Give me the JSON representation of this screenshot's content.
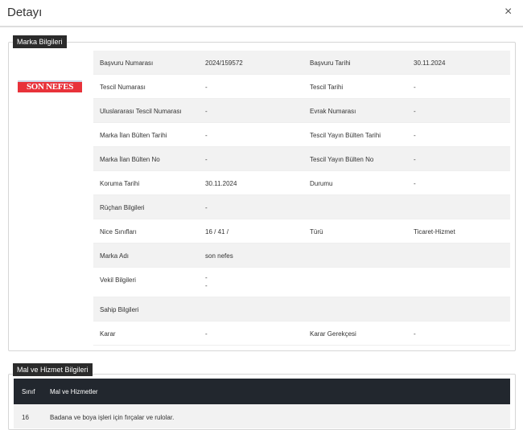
{
  "header": {
    "title": "Detayı",
    "close": "×"
  },
  "marka": {
    "legend": "Marka Bilgileri",
    "logo_text": "SON NEFES",
    "rows": [
      {
        "l1": "Başvuru Numarası",
        "v1": "2024/159572",
        "l2": "Başvuru Tarihi",
        "v2": "30.11.2024"
      },
      {
        "l1": "Tescil Numarası",
        "v1": "-",
        "l2": "Tescil Tarihi",
        "v2": "-"
      },
      {
        "l1": "Uluslararası Tescil Numarası",
        "v1": "-",
        "l2": "Evrak Numarası",
        "v2": "-"
      },
      {
        "l1": "Marka İlan Bülten Tarihi",
        "v1": "-",
        "l2": "Tescil Yayın Bülten Tarihi",
        "v2": "-"
      },
      {
        "l1": "Marka İlan Bülten No",
        "v1": "-",
        "l2": "Tescil Yayın Bülten No",
        "v2": "-"
      },
      {
        "l1": "Koruma Tarihi",
        "v1": "30.11.2024",
        "l2": "Durumu",
        "v2": "-"
      },
      {
        "l1": "Rüçhan Bilgileri",
        "v1": "-",
        "l2": "",
        "v2": ""
      },
      {
        "l1": "Nice Sınıfları",
        "v1": "16 / 41 /",
        "l2": "Türü",
        "v2": "Ticaret-Hizmet"
      },
      {
        "l1": "Marka Adı",
        "v1": "son nefes",
        "l2": "",
        "v2": ""
      },
      {
        "l1": "Vekil Bilgileri",
        "v1": "-",
        "v1b": "-",
        "l2": "",
        "v2": ""
      },
      {
        "l1": "Sahip Bilgileri",
        "v1": "",
        "l2": "",
        "v2": ""
      },
      {
        "l1": "Karar",
        "v1": "-",
        "l2": "Karar Gerekçesi",
        "v2": "-"
      }
    ]
  },
  "mal": {
    "legend": "Mal ve Hizmet Bilgileri",
    "headers": [
      "Sınıf",
      "Mal ve Hizmetler"
    ],
    "rows": [
      {
        "sinif": "16",
        "text": "Badana ve boya işleri için fırçalar ve rulolar."
      }
    ]
  }
}
